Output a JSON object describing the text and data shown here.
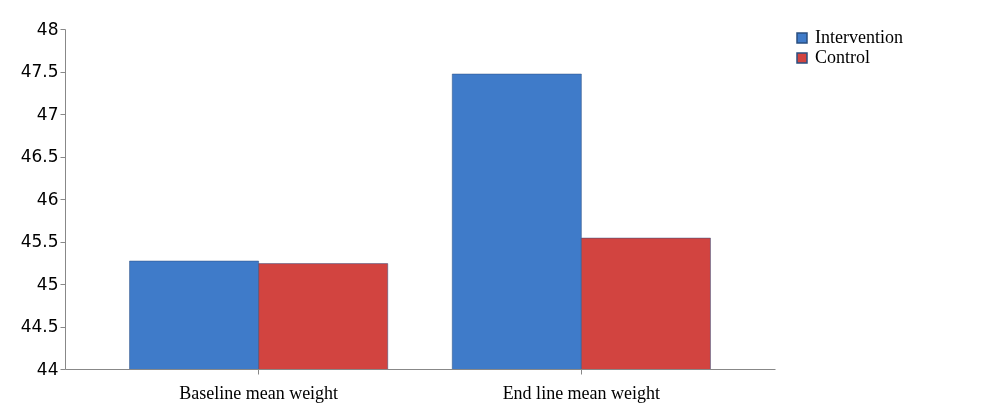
{
  "chart_data": {
    "type": "bar",
    "categories": [
      "Baseline mean weight",
      "End line mean weight"
    ],
    "series": [
      {
        "name": "Intervention",
        "color": "#3f7bc9",
        "values": [
          45.27,
          47.47
        ]
      },
      {
        "name": "Control",
        "color": "#d24440",
        "values": [
          45.24,
          45.54
        ]
      }
    ],
    "ylim": [
      44,
      48
    ],
    "yticks": [
      44,
      44.5,
      45,
      45.5,
      46,
      46.5,
      47,
      47.5,
      48
    ],
    "grid": false,
    "legend": "right"
  }
}
